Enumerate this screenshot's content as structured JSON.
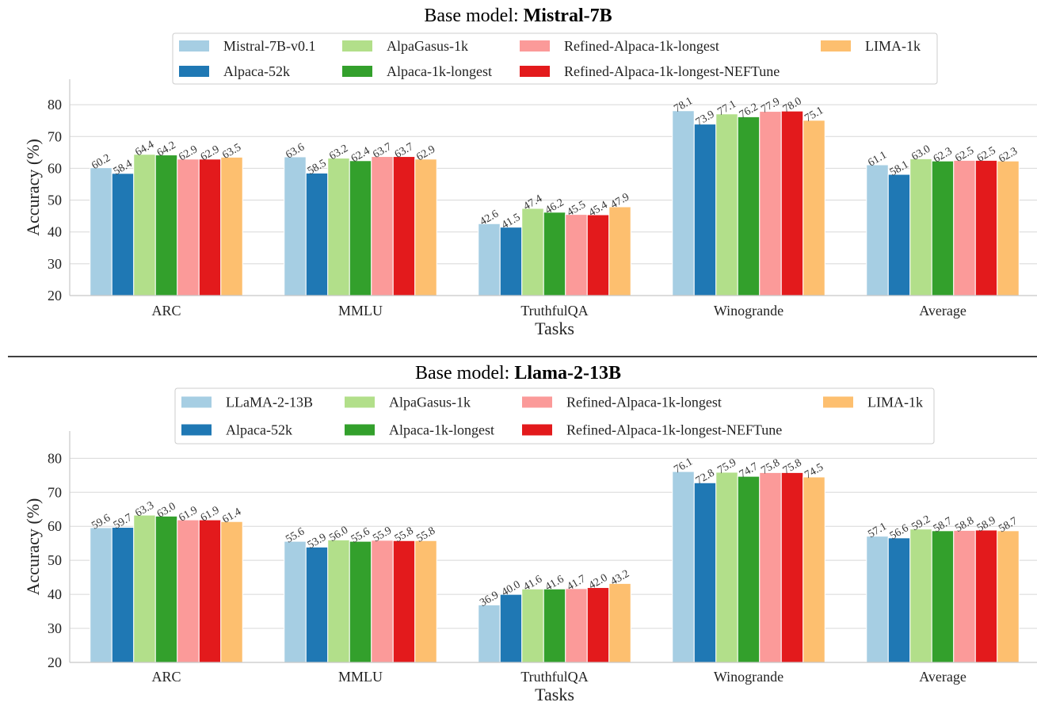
{
  "chart_data": [
    {
      "type": "bar",
      "title_prefix": "Base model: ",
      "title_bold": "Mistral-7B",
      "xlabel": "Tasks",
      "ylabel": "Accuracy (%)",
      "ylim": [
        20,
        88
      ],
      "yticks": [
        20,
        30,
        40,
        50,
        60,
        70,
        80
      ],
      "grid": true,
      "legend": "top-center",
      "categories": [
        "ARC",
        "MMLU",
        "TruthfulQA",
        "Winogrande",
        "Average"
      ],
      "series": [
        {
          "name": "Mistral-7B-v0.1",
          "color": "#a6cee3",
          "values": [
            60.2,
            63.6,
            42.6,
            78.1,
            61.1
          ]
        },
        {
          "name": "Alpaca-52k",
          "color": "#1f78b4",
          "values": [
            58.4,
            58.5,
            41.5,
            73.9,
            58.1
          ]
        },
        {
          "name": "AlpaGasus-1k",
          "color": "#b2df8a",
          "values": [
            64.4,
            63.2,
            47.4,
            77.1,
            63.0
          ]
        },
        {
          "name": "Alpaca-1k-longest",
          "color": "#33a02c",
          "values": [
            64.2,
            62.4,
            46.2,
            76.2,
            62.3
          ]
        },
        {
          "name": "Refined-Alpaca-1k-longest",
          "color": "#fb9a99",
          "values": [
            62.9,
            63.7,
            45.5,
            77.9,
            62.5
          ]
        },
        {
          "name": "Refined-Alpaca-1k-longest-NEFTune",
          "color": "#e31a1c",
          "values": [
            62.9,
            63.7,
            45.4,
            78.0,
            62.5
          ]
        },
        {
          "name": "LIMA-1k",
          "color": "#fdbf6f",
          "values": [
            63.5,
            62.9,
            47.9,
            75.1,
            62.3
          ]
        }
      ]
    },
    {
      "type": "bar",
      "title_prefix": "Base model: ",
      "title_bold": "Llama-2-13B",
      "xlabel": "Tasks",
      "ylabel": "Accuracy (%)",
      "ylim": [
        20,
        88
      ],
      "yticks": [
        20,
        30,
        40,
        50,
        60,
        70,
        80
      ],
      "grid": true,
      "legend": "top-center",
      "categories": [
        "ARC",
        "MMLU",
        "TruthfulQA",
        "Winogrande",
        "Average"
      ],
      "series": [
        {
          "name": "LLaMA-2-13B",
          "color": "#a6cee3",
          "values": [
            59.6,
            55.6,
            36.9,
            76.1,
            57.1
          ]
        },
        {
          "name": "Alpaca-52k",
          "color": "#1f78b4",
          "values": [
            59.7,
            53.9,
            40.0,
            72.8,
            56.6
          ]
        },
        {
          "name": "AlpaGasus-1k",
          "color": "#b2df8a",
          "values": [
            63.3,
            56.0,
            41.6,
            75.9,
            59.2
          ]
        },
        {
          "name": "Alpaca-1k-longest",
          "color": "#33a02c",
          "values": [
            63.0,
            55.6,
            41.6,
            74.7,
            58.7
          ]
        },
        {
          "name": "Refined-Alpaca-1k-longest",
          "color": "#fb9a99",
          "values": [
            61.9,
            55.9,
            41.7,
            75.8,
            58.8
          ]
        },
        {
          "name": "Refined-Alpaca-1k-longest-NEFTune",
          "color": "#e31a1c",
          "values": [
            61.9,
            55.8,
            42.0,
            75.8,
            58.9
          ]
        },
        {
          "name": "LIMA-1k",
          "color": "#fdbf6f",
          "values": [
            61.4,
            55.8,
            43.2,
            74.5,
            58.7
          ]
        }
      ]
    }
  ]
}
